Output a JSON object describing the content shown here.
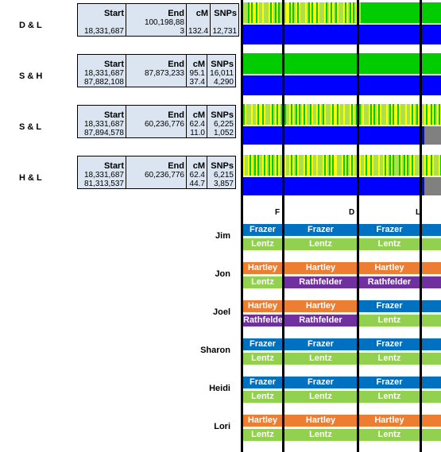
{
  "pairs": [
    {
      "label": "D & L",
      "headers": [
        "Start",
        "End",
        "cM",
        "SNPs"
      ],
      "rows": [
        [
          "18,331,687",
          "100,198,88\n3",
          "132.4",
          "12,731"
        ]
      ]
    },
    {
      "label": "S & H",
      "headers": [
        "Start",
        "End",
        "cM",
        "SNPs"
      ],
      "rows": [
        [
          "18,331,687",
          "87,873,233",
          "95.1",
          "16,011"
        ],
        [
          "87,882,108",
          "",
          "37.4",
          "4,290"
        ]
      ]
    },
    {
      "label": "S & L",
      "headers": [
        "Start",
        "End",
        "cM",
        "SNPs"
      ],
      "rows": [
        [
          "18,331,687",
          "60,236,776",
          "62.4",
          "6,225"
        ],
        [
          "87,894,578",
          "",
          "11.0",
          "1,052"
        ]
      ]
    },
    {
      "label": "H & L",
      "headers": [
        "Start",
        "End",
        "cM",
        "SNPs"
      ],
      "rows": [
        [
          "18,331,687",
          "60,236,776",
          "62.4",
          "6,215"
        ],
        [
          "81,313,537",
          "",
          "44.7",
          "3,857"
        ]
      ]
    }
  ],
  "markers": {
    "f": "F",
    "d": "D",
    "l": "L"
  },
  "people": [
    {
      "name": "Jim",
      "paternal": [
        "Frazer",
        "Frazer",
        "Frazer"
      ],
      "maternal": [
        "Lentz",
        "Lentz",
        "Lentz"
      ]
    },
    {
      "name": "Jon",
      "paternal": [
        "Hartley",
        "Hartley",
        "Hartley"
      ],
      "maternal": [
        "Lentz",
        "Rathfelder",
        "Rathfelder"
      ]
    },
    {
      "name": "Joel",
      "paternal": [
        "Hartley",
        "Hartley",
        "Frazer"
      ],
      "maternal": [
        "Rathfelde",
        "Rathfelder",
        "Lentz"
      ]
    },
    {
      "name": "Sharon",
      "paternal": [
        "Frazer",
        "Frazer",
        "Frazer"
      ],
      "maternal": [
        "Lentz",
        "Lentz",
        "Lentz"
      ]
    },
    {
      "name": "Heidi",
      "paternal": [
        "Frazer",
        "Frazer",
        "Frazer"
      ],
      "maternal": [
        "Lentz",
        "Lentz",
        "Lentz"
      ]
    },
    {
      "name": "Lori",
      "paternal": [
        "Hartley",
        "Hartley",
        "Hartley"
      ],
      "maternal": [
        "Lentz",
        "Lentz",
        "Lentz"
      ]
    }
  ],
  "colors": {
    "Frazer": "#0070c0",
    "Hartley": "#ed7d31",
    "Lentz": "#92d050",
    "Rathfelder": "#7030a0",
    "Rathfelde": "#7030a0",
    "blue": "#0000ff",
    "green": "#00cc00",
    "yellow": "#ffff00",
    "gray": "#808080"
  }
}
